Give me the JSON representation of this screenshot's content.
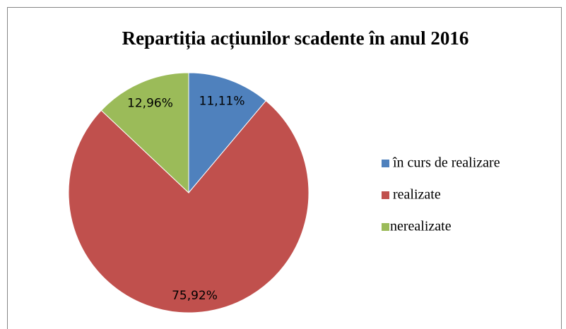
{
  "chart_data": {
    "type": "pie",
    "title": "Repartiția acțiunilor scadente în anul 2016",
    "categories": [
      "în curs de realizare",
      "realizate",
      "nerealizate"
    ],
    "values": [
      11.11,
      75.92,
      12.96
    ],
    "value_labels": [
      "11,11%",
      "75,92%",
      "12,96%"
    ],
    "colors": [
      "#4f81bd",
      "#c0504d",
      "#9bbb59"
    ],
    "legend": "right"
  }
}
